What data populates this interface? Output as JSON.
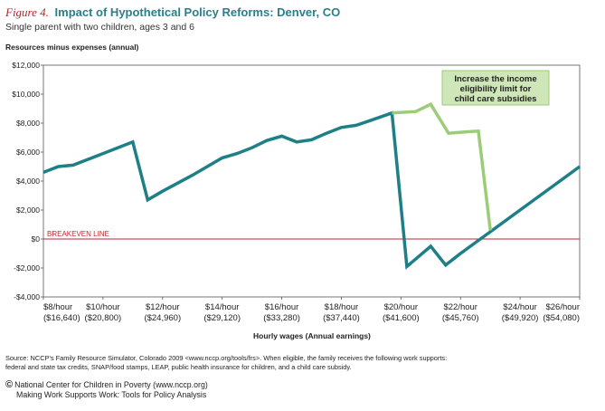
{
  "header": {
    "figure_label": "Figure 4.",
    "title": "Impact of Hypothetical Policy Reforms: Denver, CO",
    "subtitle": "Single parent with two children, ages 3 and 6"
  },
  "chart_data": {
    "type": "line",
    "ylabel": "Resources minus expenses (annual)",
    "xlabel": "Hourly wages (Annual earnings)",
    "xlim": [
      8,
      26
    ],
    "ylim": [
      -4000,
      12000
    ],
    "y_ticks": [
      -4000,
      -2000,
      0,
      2000,
      4000,
      6000,
      8000,
      10000,
      12000
    ],
    "y_tick_labels": [
      "-$4,000",
      "-$2,000",
      "$0",
      "$2,000",
      "$4,000",
      "$6,000",
      "$8,000",
      "$10,000",
      "$12,000"
    ],
    "x_ticks": [
      8,
      10,
      12,
      14,
      16,
      18,
      20,
      22,
      24,
      26
    ],
    "x_tick_labels": [
      [
        "$8/hour",
        "($16,640)"
      ],
      [
        "$10/hour",
        "($20,800)"
      ],
      [
        "$12/hour",
        "($24,960)"
      ],
      [
        "$14/hour",
        "($29,120)"
      ],
      [
        "$16/hour",
        "($33,280)"
      ],
      [
        "$18/hour",
        "($37,440)"
      ],
      [
        "$20/hour",
        "($41,600)"
      ],
      [
        "$22/hour",
        "($45,760)"
      ],
      [
        "$24/hour",
        "($49,920)"
      ],
      [
        "$26/hour",
        "($54,080)"
      ]
    ],
    "grid": false,
    "reference_line": {
      "y": 0,
      "label": "BREAKEVEN LINE",
      "color": "#c0272d"
    },
    "series": [
      {
        "color": "#1f7f86",
        "x": [
          8,
          8.5,
          9,
          10,
          11,
          11.5,
          12,
          13,
          14,
          14.5,
          15,
          15.5,
          16,
          16.5,
          17,
          17.5,
          18,
          18.5,
          19,
          19.7,
          20.2,
          21,
          21.5,
          22,
          23,
          24,
          25,
          26
        ],
        "y": [
          4600,
          5000,
          5100,
          5900,
          6700,
          2700,
          3300,
          4400,
          5600,
          5900,
          6300,
          6800,
          7100,
          6700,
          6850,
          7300,
          7700,
          7850,
          8200,
          8700,
          -1900,
          -500,
          -1800,
          -1000,
          500,
          2000,
          3500,
          5000
        ]
      },
      {
        "color": "#9ccc78",
        "x": [
          19.7,
          20.5,
          21,
          21.6,
          22.2,
          22.6,
          23
        ],
        "y": [
          8700,
          8800,
          9300,
          7300,
          7400,
          7450,
          600
        ]
      }
    ],
    "annotation": {
      "text": [
        "Increase the income",
        "eligibility limit for",
        "child care subsidies"
      ],
      "fill": "#cfe6b8",
      "border": "#9ccc78"
    }
  },
  "footer": {
    "source_line1": "Source: NCCP's Family Resource Simulator, Colorado 2009 <www.nccp.org/tools/frs>. When eligible, the family receives the following work supports:",
    "source_line2": "federal and state tax credits, SNAP/food stamps, LEAP, public health insurance for children, and a child care subsidy.",
    "credit_symbol": "©",
    "credit_line1": "National Center for Children in Poverty (www.nccp.org)",
    "credit_line2": "Making Work Supports Work: Tools for Policy Analysis"
  }
}
